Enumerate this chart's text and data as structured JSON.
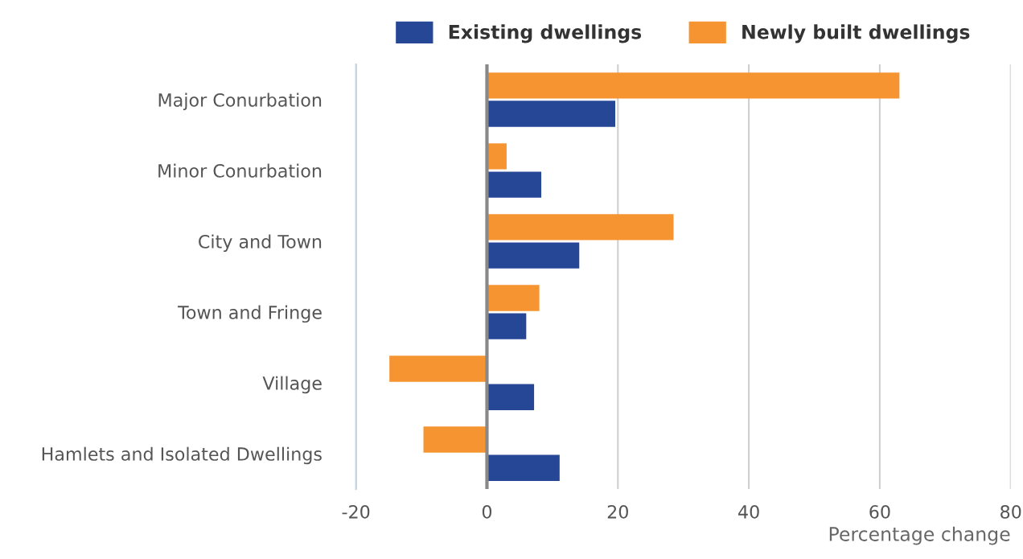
{
  "chart_data": {
    "type": "bar",
    "orientation": "horizontal",
    "categories": [
      "Major Conurbation",
      "Minor Conurbation",
      "City and Town",
      "Town and Fringe",
      "Village",
      "Hamlets and Isolated Dwellings"
    ],
    "series": [
      {
        "name": "Existing dwellings",
        "color": "#264796",
        "values": [
          19.6,
          8.3,
          14.1,
          6.0,
          7.2,
          11.1
        ]
      },
      {
        "name": "Newly built dwellings",
        "color": "#f59431",
        "values": [
          63.0,
          3.0,
          28.5,
          8.0,
          -14.9,
          -9.7
        ]
      }
    ],
    "xlabel": "Percentage change",
    "xlim": [
      -20,
      80
    ],
    "xticks": [
      -20,
      0,
      20,
      40,
      60,
      80
    ],
    "ref_lines": [
      {
        "axis": "x",
        "value": 0,
        "color": "#888888"
      }
    ],
    "grid": "x",
    "legend": "top"
  }
}
